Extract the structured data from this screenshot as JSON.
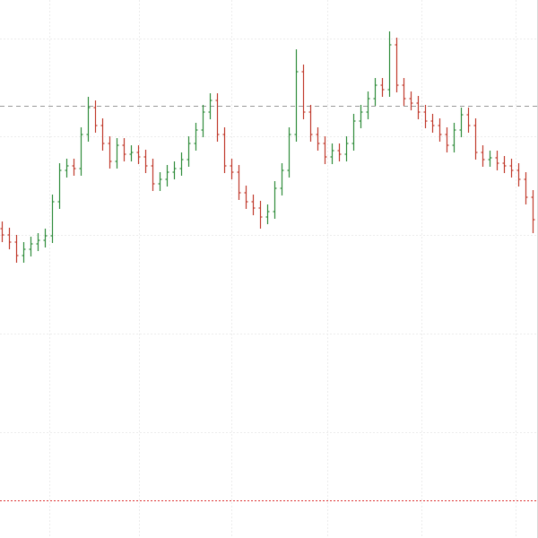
{
  "chart_data": {
    "type": "ohlc",
    "ylim": [
      0,
      600
    ],
    "colors": {
      "up": "#2e8b3a",
      "down": "#c0392b"
    },
    "open": [
      345,
      338,
      330,
      315,
      322,
      328,
      332,
      337,
      375,
      410,
      415,
      412,
      450,
      480,
      460,
      440,
      420,
      438,
      428,
      430,
      425,
      415,
      395,
      400,
      408,
      412,
      422,
      440,
      455,
      475,
      488,
      450,
      415,
      408,
      385,
      375,
      368,
      358,
      364,
      390,
      410,
      450,
      520,
      475,
      450,
      440,
      425,
      432,
      428,
      440,
      465,
      475,
      490,
      505,
      500,
      550,
      505,
      490,
      485,
      475,
      465,
      460,
      450,
      438,
      455,
      472,
      460,
      430,
      422,
      424,
      418,
      415,
      410,
      400,
      380
    ],
    "high": [
      353,
      346,
      338,
      330,
      336,
      340,
      345,
      383,
      418,
      423,
      423,
      458,
      492,
      488,
      468,
      448,
      446,
      446,
      438,
      438,
      433,
      423,
      408,
      416,
      420,
      430,
      448,
      463,
      483,
      496,
      496,
      458,
      423,
      416,
      393,
      383,
      376,
      372,
      398,
      418,
      458,
      545,
      528,
      483,
      458,
      448,
      440,
      440,
      448,
      473,
      483,
      498,
      513,
      513,
      565,
      558,
      513,
      498,
      493,
      483,
      473,
      468,
      458,
      463,
      480,
      480,
      468,
      438,
      432,
      432,
      426,
      423,
      418,
      408,
      388
    ],
    "low": [
      330,
      322,
      307,
      307,
      314,
      320,
      324,
      329,
      367,
      402,
      404,
      404,
      442,
      452,
      432,
      412,
      412,
      420,
      420,
      417,
      407,
      387,
      387,
      392,
      400,
      404,
      414,
      432,
      447,
      467,
      442,
      407,
      400,
      377,
      367,
      360,
      345,
      350,
      356,
      382,
      402,
      442,
      467,
      442,
      432,
      417,
      417,
      420,
      420,
      432,
      457,
      467,
      482,
      492,
      492,
      497,
      482,
      477,
      467,
      457,
      452,
      442,
      430,
      430,
      447,
      452,
      422,
      414,
      414,
      410,
      407,
      402,
      392,
      372,
      340
    ],
    "close": [
      338,
      330,
      315,
      322,
      328,
      332,
      337,
      375,
      410,
      415,
      412,
      450,
      480,
      460,
      440,
      420,
      438,
      428,
      430,
      425,
      415,
      395,
      400,
      408,
      412,
      422,
      440,
      455,
      475,
      488,
      450,
      415,
      408,
      385,
      375,
      368,
      358,
      364,
      390,
      410,
      450,
      520,
      475,
      450,
      440,
      425,
      432,
      428,
      440,
      465,
      475,
      490,
      505,
      500,
      550,
      505,
      490,
      485,
      475,
      465,
      460,
      450,
      438,
      455,
      472,
      460,
      430,
      422,
      424,
      418,
      415,
      410,
      400,
      380,
      355
    ],
    "reference_lines": [
      {
        "value": 482,
        "color": "#999999",
        "style": "dashed"
      },
      {
        "value": 42,
        "color": "#dd3333",
        "style": "dotted"
      }
    ],
    "grid": true
  }
}
